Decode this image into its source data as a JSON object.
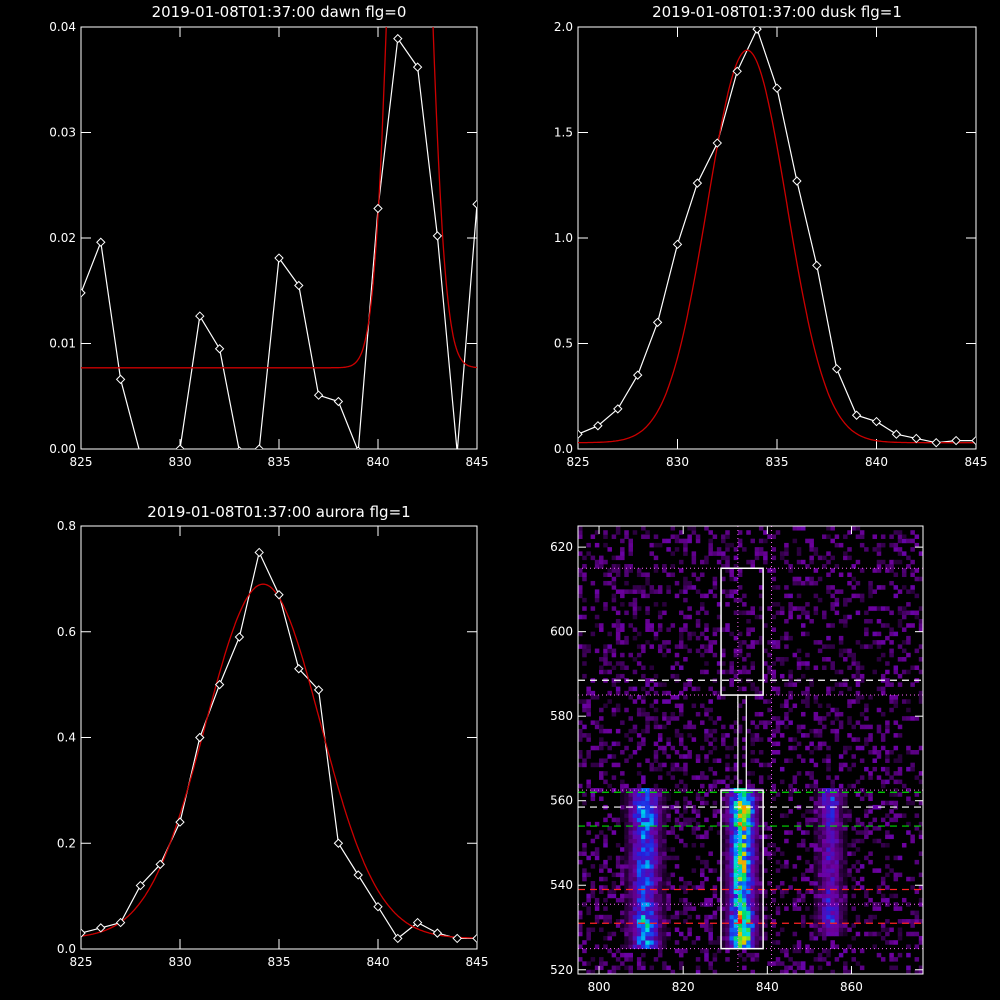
{
  "colors": {
    "background": "#000000",
    "axes": "#ffffff",
    "data": "#ffffff",
    "fit": "#cc0000"
  },
  "chart_data": [
    {
      "type": "line",
      "title": "2019-01-08T01:37:00 dawn flg=0",
      "xlim": [
        825,
        845
      ],
      "ylim": [
        0,
        0.04
      ],
      "x_ticks": [
        825,
        830,
        835,
        840,
        845
      ],
      "y_ticks": [
        0.0,
        0.01,
        0.02,
        0.03,
        0.04
      ],
      "y_tick_labels": [
        "0.00",
        "0.01",
        "0.02",
        "0.03",
        "0.04"
      ],
      "series": [
        {
          "kind": "data",
          "x": [
            825,
            826,
            827,
            828,
            829,
            830,
            831,
            832,
            833,
            834,
            835,
            836,
            837,
            838,
            839,
            840,
            841,
            842,
            843,
            844,
            845
          ],
          "y": [
            0.0148,
            0.0196,
            0.0066,
            -0.0005,
            -0.0008,
            0.0,
            0.0126,
            0.0095,
            -0.0002,
            0.0,
            0.0181,
            0.0155,
            0.0051,
            0.0045,
            -0.0002,
            0.0228,
            0.0389,
            0.0362,
            0.0202,
            -0.0003,
            0.0232
          ]
        },
        {
          "kind": "fit",
          "gauss": {
            "base": 0.0077,
            "amp": 0.085,
            "center": 841.6,
            "sigma": 0.85
          }
        }
      ]
    },
    {
      "type": "line",
      "title": "2019-01-08T01:37:00 dusk flg=1",
      "xlim": [
        825,
        845
      ],
      "ylim": [
        0,
        2.0
      ],
      "x_ticks": [
        825,
        830,
        835,
        840,
        845
      ],
      "y_ticks": [
        0.0,
        0.5,
        1.0,
        1.5,
        2.0
      ],
      "y_tick_labels": [
        "0.0",
        "0.5",
        "1.0",
        "1.5",
        "2.0"
      ],
      "series": [
        {
          "kind": "data",
          "x": [
            825,
            826,
            827,
            828,
            829,
            830,
            831,
            832,
            833,
            834,
            835,
            836,
            837,
            838,
            839,
            840,
            841,
            842,
            843,
            844,
            845
          ],
          "y": [
            0.07,
            0.11,
            0.19,
            0.35,
            0.6,
            0.97,
            1.26,
            1.45,
            1.79,
            1.99,
            1.71,
            1.27,
            0.87,
            0.38,
            0.16,
            0.13,
            0.07,
            0.05,
            0.03,
            0.04,
            0.04
          ]
        },
        {
          "kind": "fit",
          "gauss": {
            "base": 0.03,
            "amp": 1.86,
            "center": 833.5,
            "sigma": 2.0
          }
        }
      ]
    },
    {
      "type": "line",
      "title": "2019-01-08T01:37:00 aurora flg=1",
      "xlim": [
        825,
        845
      ],
      "ylim": [
        0,
        0.8
      ],
      "x_ticks": [
        825,
        830,
        835,
        840,
        845
      ],
      "y_ticks": [
        0.0,
        0.2,
        0.4,
        0.6,
        0.8
      ],
      "y_tick_labels": [
        "0.0",
        "0.2",
        "0.4",
        "0.6",
        "0.8"
      ],
      "series": [
        {
          "kind": "data",
          "x": [
            825,
            826,
            827,
            828,
            829,
            830,
            831,
            832,
            833,
            834,
            835,
            836,
            837,
            838,
            839,
            840,
            841,
            842,
            843,
            844,
            845
          ],
          "y": [
            0.03,
            0.04,
            0.05,
            0.12,
            0.16,
            0.24,
            0.4,
            0.5,
            0.59,
            0.75,
            0.67,
            0.53,
            0.49,
            0.2,
            0.14,
            0.08,
            0.02,
            0.05,
            0.03,
            0.02,
            0.02
          ]
        },
        {
          "kind": "fit",
          "gauss": {
            "base": 0.02,
            "amp": 0.67,
            "center": 834.2,
            "sigma": 2.9
          }
        }
      ]
    },
    {
      "type": "heatmap",
      "title": "",
      "xlim": [
        795,
        877
      ],
      "ylim": [
        519,
        625
      ],
      "x_ticks": [
        800,
        820,
        840,
        860
      ],
      "y_ticks": [
        520,
        540,
        560,
        580,
        600,
        620
      ],
      "emission_columns": [
        {
          "center": 811,
          "sigma": 2.5,
          "ytop": 562,
          "ybottom": 525,
          "peak": 0.7
        },
        {
          "center": 834,
          "sigma": 2.2,
          "ytop": 562,
          "ybottom": 525,
          "peak": 1.0
        },
        {
          "center": 855,
          "sigma": 2.0,
          "ytop": 562,
          "ybottom": 528,
          "peak": 0.5
        }
      ],
      "box_upper": {
        "x": [
          829,
          839
        ],
        "y": [
          585,
          615
        ]
      },
      "box_lower": {
        "x": [
          829,
          839
        ],
        "y": [
          525,
          562.5
        ]
      },
      "connector_x": [
        833,
        835
      ],
      "dotted_vlines": [
        833,
        841
      ],
      "dotted_hlines": [
        615,
        585,
        562.5,
        535.5,
        525
      ],
      "dashed_white": [
        588.5,
        558.5
      ],
      "dashed_green": [
        562,
        554
      ],
      "dashed_red": [
        539,
        531
      ]
    }
  ]
}
